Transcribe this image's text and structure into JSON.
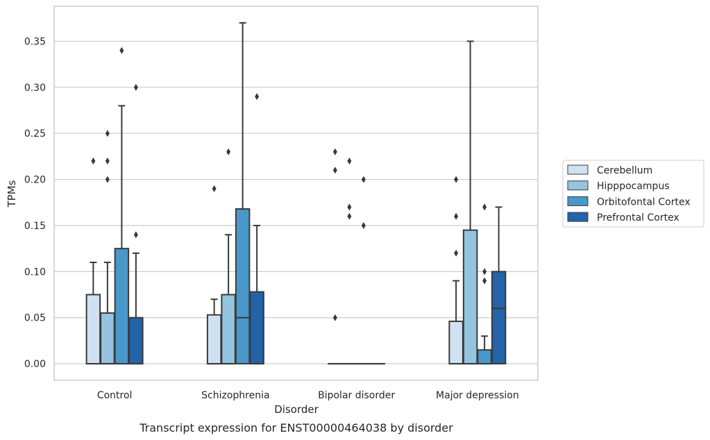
{
  "caption": "Transcript expression for ENST00000464038 by disorder",
  "chart_data": {
    "type": "box",
    "xlabel": "Disorder",
    "ylabel": "TPMs",
    "ylim": [
      -0.018,
      0.388
    ],
    "yticks": [
      "0.00",
      "0.05",
      "0.10",
      "0.15",
      "0.20",
      "0.25",
      "0.30",
      "0.35"
    ],
    "grid": "horizontal",
    "legend_position": "right",
    "categories": [
      "Control",
      "Schizophrenia",
      "Bipolar disorder",
      "Major depression"
    ],
    "series": [
      {
        "name": "Cerebellum",
        "color": "#d0e1f2",
        "boxes": [
          {
            "min": 0,
            "q1": 0,
            "median": 0,
            "q3": 0.075,
            "max": 0.11,
            "outliers": [
              0.22
            ]
          },
          {
            "min": 0,
            "q1": 0,
            "median": 0,
            "q3": 0.053,
            "max": 0.07,
            "outliers": [
              0.19
            ]
          },
          {
            "min": 0,
            "q1": 0,
            "median": 0,
            "q3": 0,
            "max": 0,
            "outliers": [
              0.05,
              0.23,
              0.21
            ]
          },
          {
            "min": 0,
            "q1": 0,
            "median": 0,
            "q3": 0.046,
            "max": 0.09,
            "outliers": [
              0.12,
              0.16,
              0.2
            ]
          }
        ]
      },
      {
        "name": "Hipppocampus",
        "color": "#94c4df",
        "boxes": [
          {
            "min": 0,
            "q1": 0,
            "median": 0,
            "q3": 0.055,
            "max": 0.11,
            "outliers": [
              0.2,
              0.22,
              0.25
            ]
          },
          {
            "min": 0,
            "q1": 0,
            "median": 0,
            "q3": 0.075,
            "max": 0.14,
            "outliers": [
              0.23
            ]
          },
          {
            "min": 0,
            "q1": 0,
            "median": 0,
            "q3": 0,
            "max": 0,
            "outliers": [
              0.22,
              0.17,
              0.16
            ]
          },
          {
            "min": 0,
            "q1": 0,
            "median": 0,
            "q3": 0.145,
            "max": 0.35,
            "outliers": []
          }
        ]
      },
      {
        "name": "Orbitofontal Cortex",
        "color": "#4a98c9",
        "boxes": [
          {
            "min": 0,
            "q1": 0,
            "median": 0,
            "q3": 0.125,
            "max": 0.28,
            "outliers": [
              0.34
            ]
          },
          {
            "min": 0,
            "q1": 0,
            "median": 0.05,
            "q3": 0.168,
            "max": 0.37,
            "outliers": []
          },
          {
            "min": 0,
            "q1": 0,
            "median": 0,
            "q3": 0,
            "max": 0,
            "outliers": [
              0.2,
              0.15
            ]
          },
          {
            "min": 0,
            "q1": 0,
            "median": 0,
            "q3": 0.015,
            "max": 0.03,
            "outliers": [
              0.09,
              0.1,
              0.17
            ]
          }
        ]
      },
      {
        "name": "Prefrontal Cortex",
        "color": "#2363a8",
        "boxes": [
          {
            "min": 0,
            "q1": 0,
            "median": 0,
            "q3": 0.05,
            "max": 0.12,
            "outliers": [
              0.14,
              0.3
            ]
          },
          {
            "min": 0,
            "q1": 0,
            "median": 0,
            "q3": 0.078,
            "max": 0.15,
            "outliers": [
              0.29
            ]
          },
          {
            "min": 0,
            "q1": 0,
            "median": 0,
            "q3": 0,
            "max": 0,
            "outliers": []
          },
          {
            "min": 0,
            "q1": 0,
            "median": 0.06,
            "q3": 0.1,
            "max": 0.17,
            "outliers": []
          }
        ]
      }
    ]
  }
}
